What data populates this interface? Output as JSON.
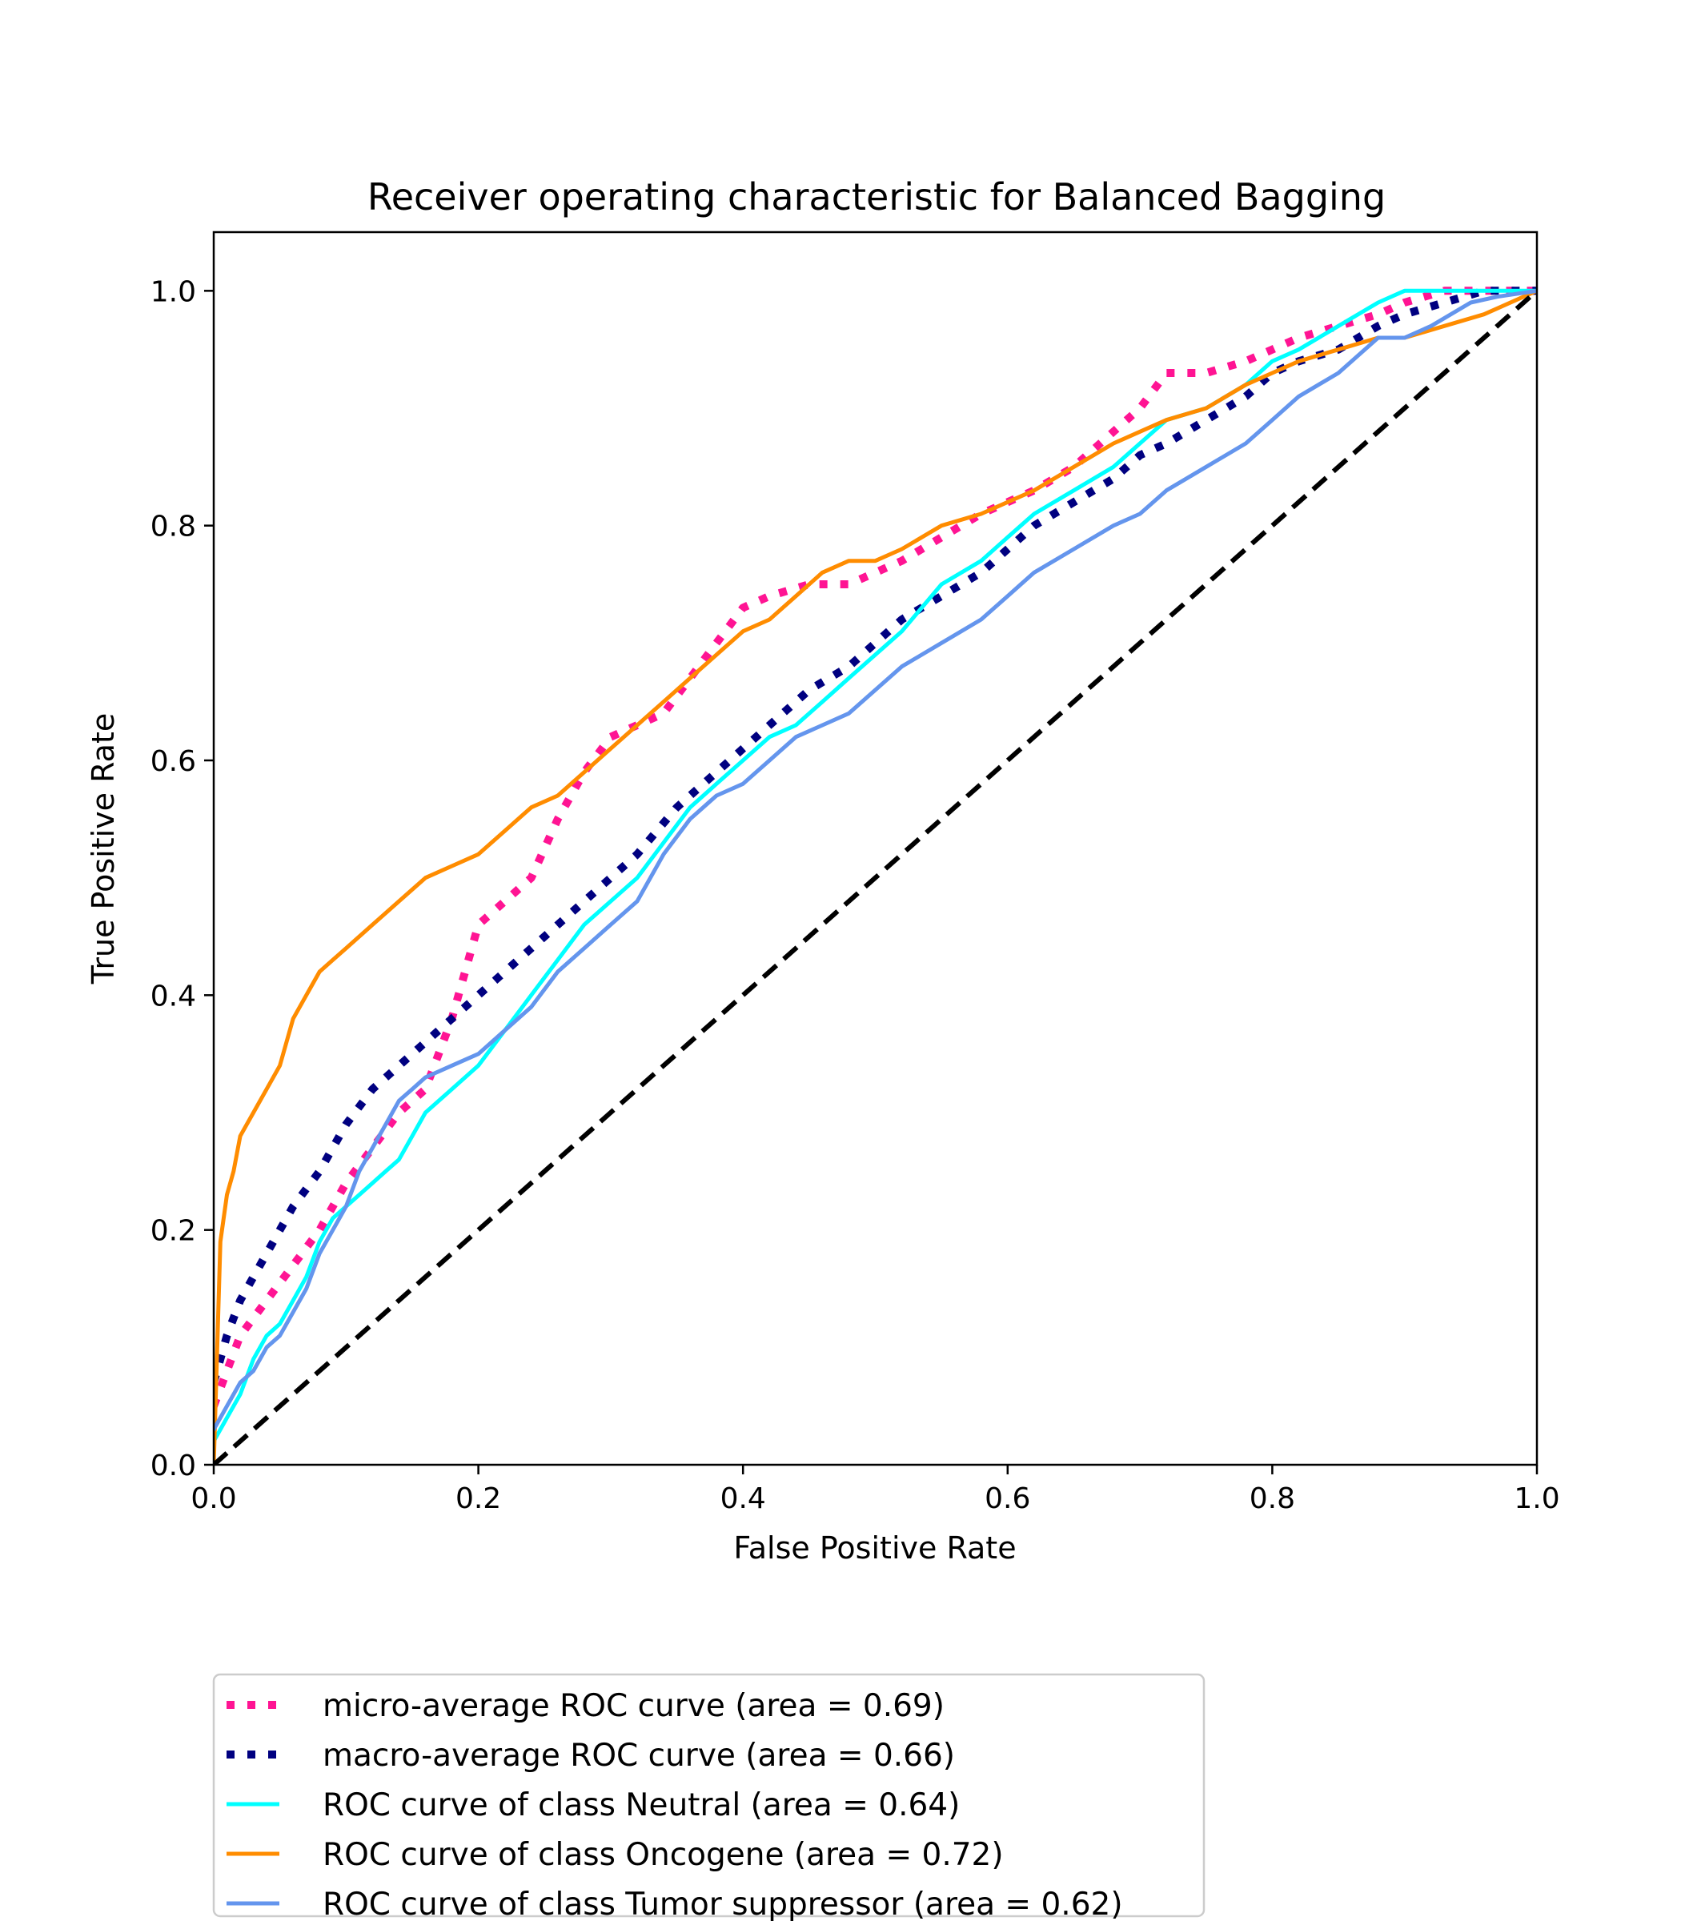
{
  "chart_data": {
    "type": "line",
    "title": "Receiver operating characteristic for Balanced Bagging",
    "xlabel": "False Positive Rate",
    "ylabel": "True Positive Rate",
    "xlim": [
      0.0,
      1.0
    ],
    "ylim": [
      0.0,
      1.05
    ],
    "xticks": [
      "0.0",
      "0.2",
      "0.4",
      "0.6",
      "0.8",
      "1.0"
    ],
    "yticks": [
      "0.0",
      "0.2",
      "0.4",
      "0.6",
      "0.8",
      "1.0"
    ],
    "grid": false,
    "legend_position": "below-left",
    "series": [
      {
        "name": "micro-average ROC curve (area = 0.69)",
        "color": "#ff1493",
        "style": "dotted",
        "x": [
          0.0,
          0.01,
          0.02,
          0.04,
          0.06,
          0.08,
          0.1,
          0.12,
          0.14,
          0.16,
          0.18,
          0.2,
          0.22,
          0.24,
          0.26,
          0.28,
          0.3,
          0.32,
          0.34,
          0.36,
          0.38,
          0.4,
          0.42,
          0.45,
          0.48,
          0.5,
          0.52,
          0.55,
          0.58,
          0.6,
          0.62,
          0.65,
          0.68,
          0.7,
          0.72,
          0.75,
          0.78,
          0.8,
          0.82,
          0.85,
          0.88,
          0.9,
          0.93,
          0.96,
          1.0
        ],
        "y": [
          0.05,
          0.08,
          0.11,
          0.14,
          0.17,
          0.2,
          0.24,
          0.27,
          0.3,
          0.32,
          0.38,
          0.46,
          0.48,
          0.5,
          0.55,
          0.59,
          0.62,
          0.63,
          0.64,
          0.67,
          0.7,
          0.73,
          0.74,
          0.75,
          0.75,
          0.76,
          0.77,
          0.79,
          0.81,
          0.82,
          0.83,
          0.85,
          0.88,
          0.9,
          0.93,
          0.93,
          0.94,
          0.95,
          0.96,
          0.97,
          0.98,
          0.99,
          1.0,
          1.0,
          1.0
        ]
      },
      {
        "name": "macro-average ROC curve (area = 0.66)",
        "color": "#000080",
        "style": "dotted",
        "x": [
          0.0,
          0.01,
          0.02,
          0.04,
          0.06,
          0.08,
          0.1,
          0.12,
          0.15,
          0.18,
          0.2,
          0.22,
          0.25,
          0.28,
          0.3,
          0.32,
          0.35,
          0.38,
          0.4,
          0.42,
          0.45,
          0.48,
          0.5,
          0.52,
          0.55,
          0.58,
          0.6,
          0.62,
          0.65,
          0.68,
          0.7,
          0.72,
          0.75,
          0.78,
          0.8,
          0.82,
          0.85,
          0.88,
          0.9,
          0.93,
          0.96,
          1.0
        ],
        "y": [
          0.07,
          0.11,
          0.14,
          0.18,
          0.22,
          0.25,
          0.29,
          0.32,
          0.35,
          0.38,
          0.4,
          0.42,
          0.45,
          0.48,
          0.5,
          0.52,
          0.56,
          0.59,
          0.61,
          0.63,
          0.66,
          0.68,
          0.7,
          0.72,
          0.74,
          0.76,
          0.78,
          0.8,
          0.82,
          0.84,
          0.86,
          0.87,
          0.89,
          0.91,
          0.93,
          0.94,
          0.95,
          0.97,
          0.98,
          0.99,
          1.0,
          1.0
        ]
      },
      {
        "name": "ROC curve of class Neutral (area = 0.64)",
        "color": "#00ffff",
        "style": "solid",
        "x": [
          0.0,
          0.01,
          0.02,
          0.03,
          0.04,
          0.05,
          0.06,
          0.07,
          0.08,
          0.09,
          0.1,
          0.11,
          0.12,
          0.13,
          0.14,
          0.15,
          0.16,
          0.18,
          0.2,
          0.22,
          0.24,
          0.26,
          0.28,
          0.3,
          0.32,
          0.34,
          0.36,
          0.38,
          0.4,
          0.42,
          0.44,
          0.46,
          0.48,
          0.5,
          0.52,
          0.55,
          0.58,
          0.6,
          0.62,
          0.65,
          0.68,
          0.7,
          0.72,
          0.75,
          0.78,
          0.8,
          0.82,
          0.85,
          0.88,
          0.9,
          0.92,
          0.95,
          0.97,
          1.0
        ],
        "y": [
          0.02,
          0.04,
          0.06,
          0.09,
          0.11,
          0.12,
          0.14,
          0.16,
          0.19,
          0.21,
          0.22,
          0.23,
          0.24,
          0.25,
          0.26,
          0.28,
          0.3,
          0.32,
          0.34,
          0.37,
          0.4,
          0.43,
          0.46,
          0.48,
          0.5,
          0.53,
          0.56,
          0.58,
          0.6,
          0.62,
          0.63,
          0.65,
          0.67,
          0.69,
          0.71,
          0.75,
          0.77,
          0.79,
          0.81,
          0.83,
          0.85,
          0.87,
          0.89,
          0.9,
          0.92,
          0.94,
          0.95,
          0.97,
          0.99,
          1.0,
          1.0,
          1.0,
          1.0,
          1.0
        ]
      },
      {
        "name": "ROC curve of class Oncogene (area = 0.72)",
        "color": "#ff8c00",
        "style": "solid",
        "x": [
          0.0,
          0.005,
          0.01,
          0.015,
          0.02,
          0.03,
          0.04,
          0.05,
          0.06,
          0.07,
          0.08,
          0.09,
          0.1,
          0.12,
          0.14,
          0.16,
          0.18,
          0.2,
          0.22,
          0.24,
          0.26,
          0.28,
          0.3,
          0.32,
          0.34,
          0.36,
          0.38,
          0.4,
          0.42,
          0.44,
          0.46,
          0.48,
          0.5,
          0.52,
          0.55,
          0.58,
          0.6,
          0.62,
          0.65,
          0.68,
          0.7,
          0.72,
          0.75,
          0.78,
          0.8,
          0.82,
          0.85,
          0.88,
          0.9,
          0.93,
          0.96,
          1.0
        ],
        "y": [
          0.0,
          0.19,
          0.23,
          0.25,
          0.28,
          0.3,
          0.32,
          0.34,
          0.38,
          0.4,
          0.42,
          0.43,
          0.44,
          0.46,
          0.48,
          0.5,
          0.51,
          0.52,
          0.54,
          0.56,
          0.57,
          0.59,
          0.61,
          0.63,
          0.65,
          0.67,
          0.69,
          0.71,
          0.72,
          0.74,
          0.76,
          0.77,
          0.77,
          0.78,
          0.8,
          0.81,
          0.82,
          0.83,
          0.85,
          0.87,
          0.88,
          0.89,
          0.9,
          0.92,
          0.93,
          0.94,
          0.95,
          0.96,
          0.96,
          0.97,
          0.98,
          1.0
        ]
      },
      {
        "name": "ROC curve of class Tumor suppressor (area = 0.62)",
        "color": "#6495ed",
        "style": "solid",
        "x": [
          0.0,
          0.01,
          0.02,
          0.03,
          0.04,
          0.05,
          0.06,
          0.07,
          0.08,
          0.09,
          0.1,
          0.11,
          0.12,
          0.13,
          0.14,
          0.15,
          0.16,
          0.18,
          0.2,
          0.22,
          0.24,
          0.26,
          0.28,
          0.3,
          0.32,
          0.34,
          0.36,
          0.38,
          0.4,
          0.42,
          0.44,
          0.46,
          0.48,
          0.5,
          0.52,
          0.55,
          0.58,
          0.6,
          0.62,
          0.65,
          0.68,
          0.7,
          0.72,
          0.75,
          0.78,
          0.8,
          0.82,
          0.85,
          0.88,
          0.9,
          0.92,
          0.95,
          0.97,
          1.0
        ],
        "y": [
          0.03,
          0.05,
          0.07,
          0.08,
          0.1,
          0.11,
          0.13,
          0.15,
          0.18,
          0.2,
          0.22,
          0.25,
          0.27,
          0.29,
          0.31,
          0.32,
          0.33,
          0.34,
          0.35,
          0.37,
          0.39,
          0.42,
          0.44,
          0.46,
          0.48,
          0.52,
          0.55,
          0.57,
          0.58,
          0.6,
          0.62,
          0.63,
          0.64,
          0.66,
          0.68,
          0.7,
          0.72,
          0.74,
          0.76,
          0.78,
          0.8,
          0.81,
          0.83,
          0.85,
          0.87,
          0.89,
          0.91,
          0.93,
          0.96,
          0.96,
          0.97,
          0.99,
          0.995,
          1.0
        ]
      },
      {
        "name": "",
        "color": "#000000",
        "style": "dashed",
        "x": [
          0.0,
          1.0
        ],
        "y": [
          0.0,
          1.0
        ]
      }
    ]
  }
}
